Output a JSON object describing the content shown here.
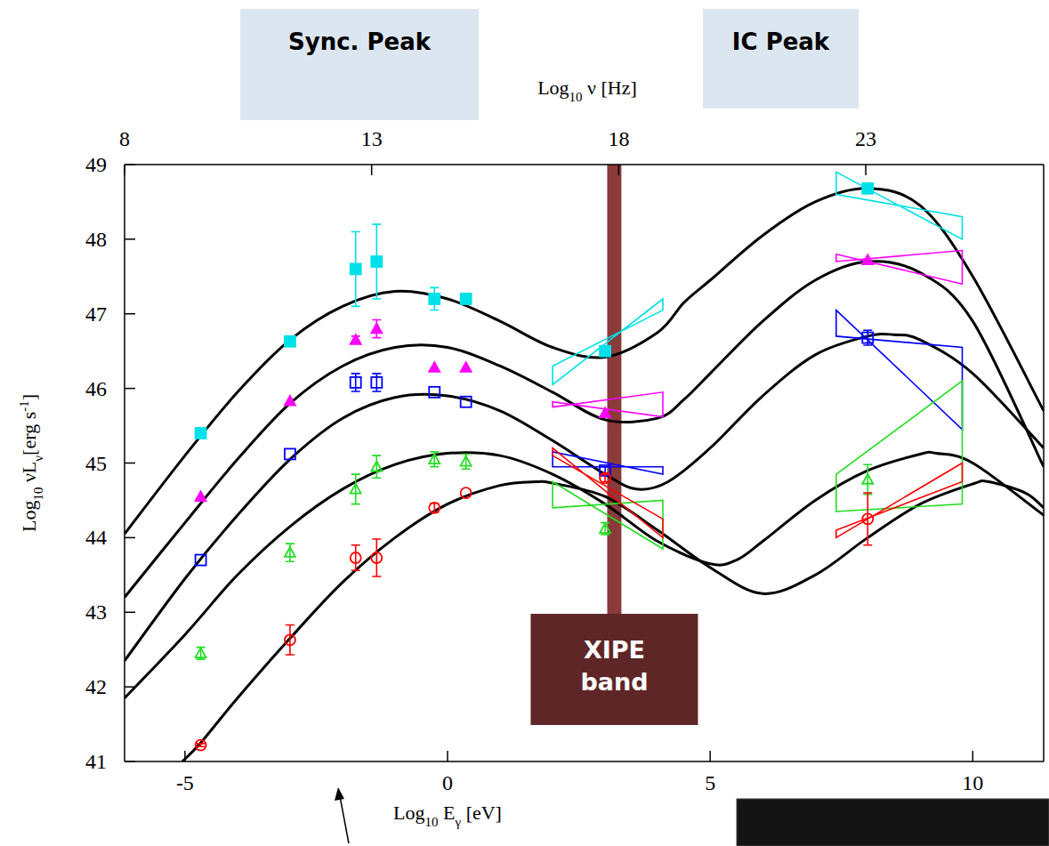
{
  "chart_data": {
    "type": "line",
    "x_label": [
      "Log",
      {
        "sub": "10"
      },
      " E",
      {
        "sub": "γ"
      },
      " [eV]"
    ],
    "x2_label": [
      "Log",
      {
        "sub": "10"
      },
      " ν [Hz]"
    ],
    "y_label": [
      "Log",
      {
        "sub": "10"
      },
      " νL",
      {
        "sub": "ν"
      },
      "[erg s",
      {
        "sup": "-1"
      },
      "]"
    ],
    "xlim": [
      -6.15,
      11.35
    ],
    "xticks": [
      -5,
      0,
      5,
      10
    ],
    "x2lim": [
      8,
      26.6
    ],
    "x2ticks": [
      8,
      13,
      18,
      23
    ],
    "ylim": [
      41,
      49
    ],
    "yticks": [
      41,
      42,
      43,
      44,
      45,
      46,
      47,
      48,
      49
    ],
    "grid": false,
    "annotations": [
      {
        "text": "Sync. Peak"
      },
      {
        "text": "IC Peak"
      }
    ],
    "band": {
      "label": [
        "XIPE",
        "band"
      ],
      "x": [
        3.04,
        3.31
      ],
      "color": "#8b3a3a"
    },
    "series": [
      {
        "type": "line",
        "color": "#000000",
        "x": [
          -6.15,
          -5,
          -4,
          -3,
          -2,
          -1,
          0,
          1,
          2,
          3,
          4,
          4.5,
          5,
          6,
          7,
          8,
          9,
          10,
          11.35
        ],
        "values": [
          44.05,
          45.1,
          45.95,
          46.65,
          47.1,
          47.3,
          47.2,
          46.9,
          46.55,
          46.42,
          46.75,
          47.15,
          47.45,
          48.05,
          48.5,
          48.68,
          48.45,
          47.5,
          45.7
        ]
      },
      {
        "type": "line",
        "color": "#000000",
        "x": [
          -6.15,
          -5,
          -4,
          -3,
          -2,
          -1,
          0,
          1,
          2,
          3,
          4,
          4.5,
          5,
          6,
          7,
          8,
          9,
          10,
          11.35
        ],
        "values": [
          43.2,
          44.2,
          45.05,
          45.8,
          46.3,
          46.55,
          46.55,
          46.3,
          45.95,
          45.58,
          45.6,
          45.85,
          46.2,
          46.9,
          47.45,
          47.7,
          47.55,
          46.9,
          44.95
        ]
      },
      {
        "type": "line",
        "color": "#000000",
        "x": [
          -6.15,
          -5,
          -4,
          -3,
          -2,
          -1,
          0,
          1,
          2,
          3,
          3.6,
          4.2,
          5,
          6,
          7,
          8,
          8.5,
          9,
          10,
          11.35
        ],
        "values": [
          42.35,
          43.45,
          44.3,
          45.05,
          45.6,
          45.88,
          45.9,
          45.7,
          45.3,
          44.85,
          44.65,
          44.75,
          45.2,
          45.9,
          46.45,
          46.7,
          46.72,
          46.65,
          46.2,
          45.2
        ]
      },
      {
        "type": "line",
        "color": "#000000",
        "x": [
          -6.15,
          -5,
          -4,
          -3,
          -2,
          -1,
          0,
          1,
          2,
          3,
          4,
          5,
          5.5,
          6,
          7,
          8,
          9,
          9.3,
          10,
          11.35
        ],
        "values": [
          41.85,
          42.7,
          43.5,
          44.15,
          44.65,
          44.98,
          45.13,
          45.1,
          44.85,
          44.45,
          43.95,
          43.65,
          43.7,
          43.95,
          44.5,
          44.9,
          45.12,
          45.13,
          45.0,
          44.3
        ]
      },
      {
        "type": "line",
        "color": "#000000",
        "x": [
          -5.05,
          -4.7,
          -4,
          -3,
          -2,
          -1,
          0,
          1,
          1.7,
          2,
          3,
          4,
          5,
          6,
          7,
          8,
          9,
          10,
          10.3,
          11,
          11.35
        ],
        "values": [
          41,
          41.25,
          41.85,
          42.65,
          43.4,
          44.0,
          44.45,
          44.7,
          44.75,
          44.73,
          44.55,
          44.1,
          43.6,
          43.25,
          43.5,
          44.0,
          44.45,
          44.72,
          44.75,
          44.6,
          44.4
        ]
      },
      {
        "type": "scatter",
        "color": "#00e0e8",
        "marker": "square-filled",
        "x": [
          -4.7,
          -3,
          -1.75,
          -1.35,
          -0.25,
          0.35,
          3,
          8
        ],
        "values": [
          45.4,
          46.63,
          47.6,
          47.7,
          47.2,
          47.2,
          46.5,
          48.68
        ],
        "errors": [
          null,
          null,
          0.5,
          0.5,
          0.15,
          null,
          0.05,
          0.05
        ],
        "bowties": [
          {
            "x": [
              2,
              4.1
            ],
            "line1": [
              46.05,
              47.2
            ],
            "line2": [
              46.3,
              47.05
            ]
          },
          {
            "x": [
              7.4,
              9.8
            ],
            "line1": [
              48.9,
              48.0
            ],
            "line2": [
              48.6,
              48.3
            ]
          }
        ]
      },
      {
        "type": "scatter",
        "color": "#ff00ff",
        "marker": "triangle-filled",
        "x": [
          -4.7,
          -3,
          -1.75,
          -1.35,
          -0.25,
          0.35,
          3,
          8
        ],
        "values": [
          44.55,
          45.83,
          46.65,
          46.8,
          46.28,
          46.28,
          45.67,
          47.72
        ],
        "errors": [
          null,
          null,
          0.05,
          0.12,
          null,
          null,
          null,
          null
        ],
        "bowties": [
          {
            "x": [
              2,
              4.1
            ],
            "line1": [
              45.75,
              45.95
            ],
            "line2": [
              45.82,
              45.62
            ]
          },
          {
            "x": [
              7.4,
              9.8
            ],
            "line1": [
              47.8,
              47.4
            ],
            "line2": [
              47.7,
              47.85
            ]
          }
        ]
      },
      {
        "type": "scatter",
        "color": "#0000ff",
        "marker": "square-open",
        "x": [
          -4.7,
          -3,
          -1.75,
          -1.35,
          -0.25,
          0.35,
          3,
          8
        ],
        "values": [
          43.7,
          45.12,
          46.08,
          46.08,
          45.95,
          45.82,
          44.9,
          46.68
        ],
        "errors": [
          null,
          null,
          0.12,
          0.12,
          null,
          null,
          0.05,
          0.1
        ],
        "bowties": [
          {
            "x": [
              2,
              4.1
            ],
            "line1": [
              45.15,
              44.85
            ],
            "line2": [
              44.95,
              44.95
            ]
          },
          {
            "x": [
              7.4,
              9.8
            ],
            "line1": [
              47.05,
              45.45
            ],
            "line2": [
              46.7,
              46.55
            ]
          }
        ]
      },
      {
        "type": "scatter",
        "color": "#22dd22",
        "marker": "triangle-open",
        "x": [
          -4.7,
          -3,
          -1.75,
          -1.35,
          -0.25,
          0.35,
          3,
          8
        ],
        "values": [
          42.45,
          43.8,
          44.65,
          44.95,
          45.05,
          45.02,
          44.12,
          44.78
        ],
        "errors": [
          0.08,
          0.12,
          0.2,
          0.15,
          0.1,
          0.1,
          0.08,
          0.2
        ],
        "bowties": [
          {
            "x": [
              2,
              4.1
            ],
            "line1": [
              44.75,
              43.85
            ],
            "line2": [
              44.4,
              44.5
            ]
          },
          {
            "x": [
              7.4,
              9.8
            ],
            "line1": [
              44.85,
              46.1
            ],
            "line2": [
              44.35,
              44.45
            ]
          }
        ]
      },
      {
        "type": "scatter",
        "color": "#ff0000",
        "marker": "circle-open",
        "x": [
          -4.7,
          -3,
          -1.75,
          -1.35,
          -0.25,
          0.35,
          3,
          8
        ],
        "values": [
          41.22,
          42.63,
          43.73,
          43.73,
          44.4,
          44.6,
          44.8,
          44.25
        ],
        "errors": [
          0.02,
          0.2,
          0.17,
          0.25,
          0.06,
          null,
          0.05,
          0.35
        ],
        "bowties": [
          {
            "x": [
              2,
              4.1
            ],
            "line1": [
              45.2,
              44.0
            ],
            "line2": [
              45.1,
              44.25
            ]
          },
          {
            "x": [
              7.4,
              9.8
            ],
            "line1": [
              44.0,
              45.0
            ],
            "line2": [
              44.1,
              44.75
            ]
          }
        ]
      }
    ]
  }
}
